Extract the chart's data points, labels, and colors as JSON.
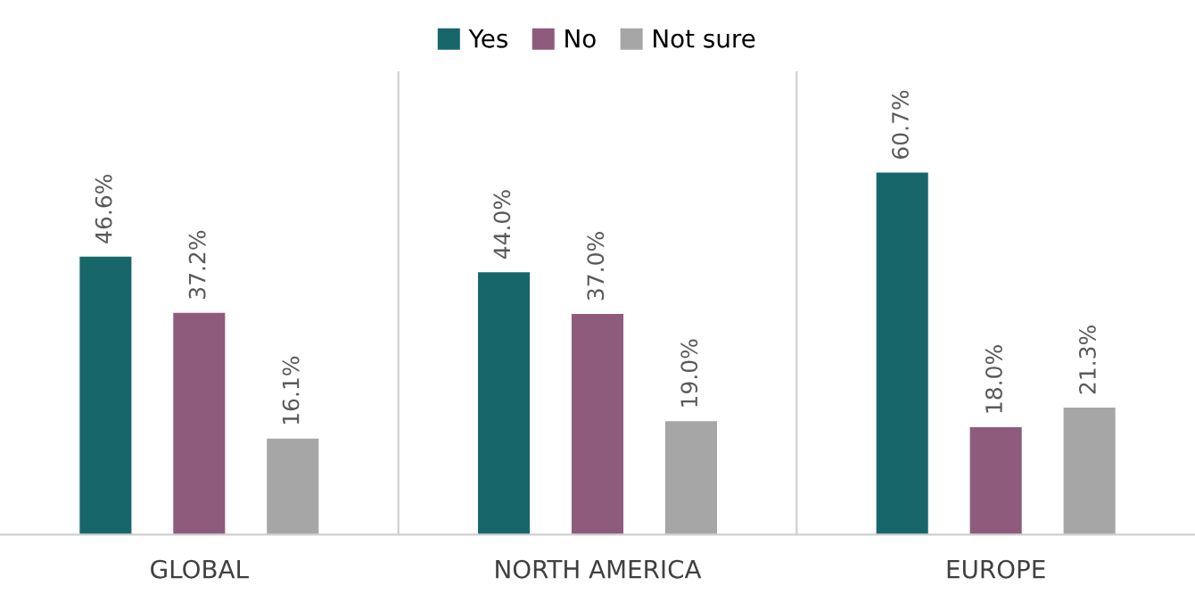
{
  "chart_data": {
    "type": "bar",
    "categories": [
      "GLOBAL",
      "NORTH AMERICA",
      "EUROPE"
    ],
    "series": [
      {
        "name": "Yes",
        "color": "#17676a",
        "values": [
          46.6,
          44.0,
          60.7
        ],
        "value_labels": [
          "46.6%",
          "44.0%",
          "60.7%"
        ]
      },
      {
        "name": "No",
        "color": "#8e5b7c",
        "values": [
          37.2,
          37.0,
          18.0
        ],
        "value_labels": [
          "37.2%",
          "37.0%",
          "18.0%"
        ]
      },
      {
        "name": "Not sure",
        "color": "#a6a6a6",
        "values": [
          16.1,
          19.0,
          21.3
        ],
        "value_labels": [
          "16.1%",
          "19.0%",
          "21.3%"
        ]
      }
    ],
    "legend": "top"
  }
}
